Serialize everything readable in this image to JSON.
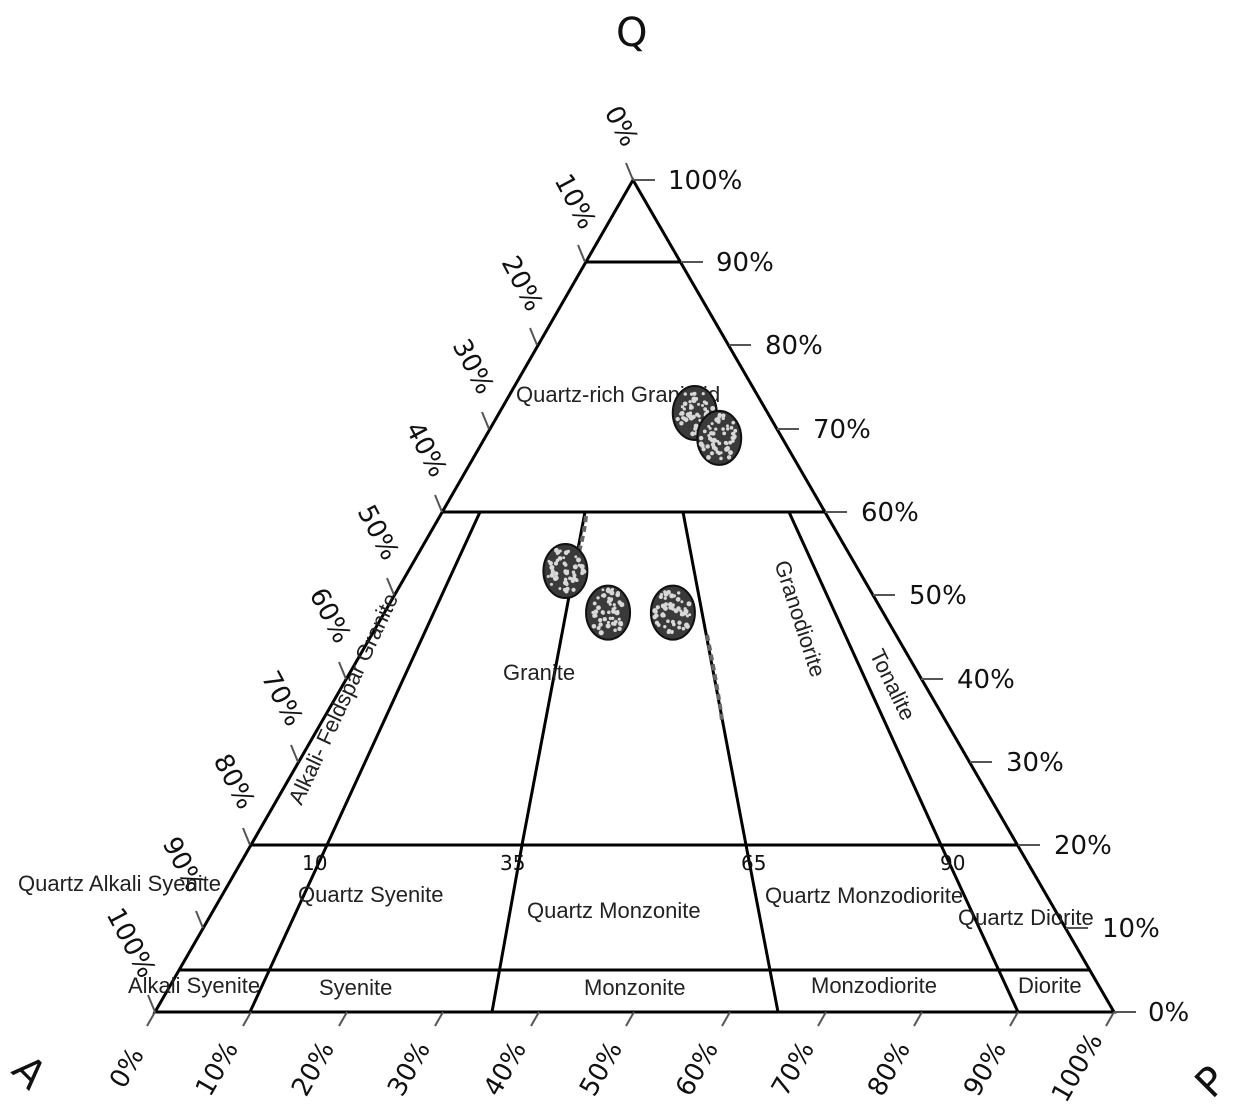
{
  "vertices": {
    "top": "Q",
    "left": "A",
    "right": "P"
  },
  "q_axis_ticks": [
    "100%",
    "90%",
    "80%",
    "70%",
    "60%",
    "50%",
    "40%",
    "30%",
    "20%",
    "10%",
    "0%"
  ],
  "a_axis_ticks": [
    "0%",
    "10%",
    "20%",
    "30%",
    "40%",
    "50%",
    "60%",
    "70%",
    "80%",
    "90%",
    "100%"
  ],
  "p_axis_ticks": [
    "0%",
    "10%",
    "20%",
    "30%",
    "40%",
    "50%",
    "60%",
    "70%",
    "80%",
    "90%",
    "100%"
  ],
  "boundary_numbers": [
    "10",
    "35",
    "65",
    "90"
  ],
  "fields": {
    "quartz_rich_granitoid": "Quartz-rich Granitoid",
    "alkali_feldspar_granite": "Alkali- Feldspar Granite",
    "granite": "Granite",
    "granodiorite": "Granodiorite",
    "tonalite": "Tonalite",
    "quartz_alkali_syenite": "Quartz Alkali Syenite",
    "quartz_syenite": "Quartz Syenite",
    "quartz_monzonite": "Quartz Monzonite",
    "quartz_monzodiorite": "Quartz Monzodiorite",
    "quartz_diorite": "Quartz Diorite",
    "alkali_syenite": "Alkali Syenite",
    "syenite": "Syenite",
    "monzonite": "Monzonite",
    "monzodiorite": "Monzodiorite",
    "diorite": "Diorite"
  },
  "samples": [
    {
      "Q": 72,
      "P": 73
    },
    {
      "Q": 69,
      "P": 79
    },
    {
      "Q": 53,
      "P": 35
    },
    {
      "Q": 48,
      "P": 45
    },
    {
      "Q": 48,
      "P": 58
    }
  ],
  "colors": {
    "lines": "#000000",
    "sample_fill": "#3a3a3a",
    "sample_dots": "#d8d8d8"
  }
}
